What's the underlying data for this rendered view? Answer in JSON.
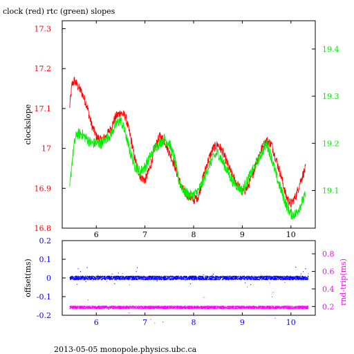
{
  "title": "clock (red) rtc (green) slopes",
  "footer": "2013-05-05  monopole.physics.ubc.ca",
  "colors": {
    "clock": "#ff0000",
    "rtc": "#00ee00",
    "offset": "#0000ff",
    "rndtrip": "#ff00ff",
    "axis": "#000000"
  },
  "chart_data": [
    {
      "type": "line",
      "ylabel": "clockslope",
      "y2label": "",
      "xlim": [
        5.3,
        10.5
      ],
      "ylim": [
        16.8,
        17.32
      ],
      "y2lim": [
        19.02,
        19.46
      ],
      "x_ticks": [
        6,
        7,
        8,
        9,
        10
      ],
      "y_ticks": [
        "16.8",
        "16.9",
        "17",
        "17.1",
        "17.2",
        "17.3"
      ],
      "y2_ticks": [
        "19.1",
        "19.2",
        "19.3",
        "19.4"
      ],
      "grid": false,
      "series": [
        {
          "name": "clock",
          "axis": "left",
          "x": [
            5.45,
            5.5,
            5.55,
            5.6,
            5.7,
            5.8,
            5.9,
            6.0,
            6.1,
            6.2,
            6.3,
            6.4,
            6.5,
            6.6,
            6.7,
            6.8,
            6.9,
            7.0,
            7.1,
            7.2,
            7.3,
            7.4,
            7.5,
            7.6,
            7.7,
            7.8,
            7.9,
            8.0,
            8.1,
            8.2,
            8.3,
            8.4,
            8.5,
            8.6,
            8.7,
            8.8,
            8.9,
            9.0,
            9.1,
            9.2,
            9.3,
            9.4,
            9.5,
            9.6,
            9.7,
            9.8,
            9.9,
            10.0,
            10.1,
            10.2,
            10.3
          ],
          "y": [
            17.1,
            17.16,
            17.17,
            17.16,
            17.14,
            17.11,
            17.06,
            17.03,
            17.02,
            17.03,
            17.05,
            17.08,
            17.09,
            17.08,
            17.03,
            16.97,
            16.93,
            16.92,
            16.95,
            17.0,
            17.03,
            17.02,
            16.99,
            16.96,
            16.92,
            16.89,
            16.88,
            16.87,
            16.88,
            16.93,
            16.97,
            17.0,
            17.01,
            16.99,
            16.96,
            16.93,
            16.91,
            16.89,
            16.9,
            16.93,
            16.97,
            17.0,
            17.02,
            17.01,
            16.97,
            16.93,
            16.88,
            16.86,
            16.88,
            16.92,
            16.95
          ]
        },
        {
          "name": "rtc",
          "axis": "right",
          "x": [
            5.45,
            5.5,
            5.55,
            5.6,
            5.7,
            5.8,
            5.9,
            6.0,
            6.1,
            6.2,
            6.3,
            6.4,
            6.5,
            6.6,
            6.7,
            6.8,
            6.9,
            7.0,
            7.1,
            7.2,
            7.3,
            7.4,
            7.5,
            7.6,
            7.7,
            7.8,
            7.9,
            8.0,
            8.1,
            8.2,
            8.3,
            8.4,
            8.5,
            8.6,
            8.7,
            8.8,
            8.9,
            9.0,
            9.1,
            9.2,
            9.3,
            9.4,
            9.5,
            9.6,
            9.7,
            9.8,
            9.9,
            10.0,
            10.1,
            10.2,
            10.3
          ],
          "y": [
            19.1,
            19.16,
            19.2,
            19.22,
            19.22,
            19.21,
            19.2,
            19.2,
            19.2,
            19.21,
            19.22,
            19.24,
            19.25,
            19.22,
            19.18,
            19.15,
            19.14,
            19.15,
            19.17,
            19.19,
            19.2,
            19.21,
            19.2,
            19.17,
            19.12,
            19.1,
            19.09,
            19.09,
            19.1,
            19.12,
            19.15,
            19.17,
            19.18,
            19.16,
            19.14,
            19.12,
            19.11,
            19.1,
            19.12,
            19.14,
            19.16,
            19.18,
            19.2,
            19.17,
            19.13,
            19.1,
            19.07,
            19.05,
            19.05,
            19.07,
            19.09
          ]
        }
      ]
    },
    {
      "type": "scatter",
      "ylabel": "offset(ms)",
      "y2label": "rnd-trip(ms)",
      "xlim": [
        5.3,
        10.5
      ],
      "ylim": [
        -0.2,
        0.2
      ],
      "y2lim": [
        0.1,
        0.95
      ],
      "x_ticks": [
        6,
        7,
        8,
        9,
        10
      ],
      "y_ticks": [
        "-0.2",
        "-0.1",
        "0",
        "0.1",
        "0.2"
      ],
      "y2_ticks": [
        "0.2",
        "0.4",
        "0.6",
        "0.8"
      ],
      "grid": false,
      "series": [
        {
          "name": "offset",
          "axis": "left",
          "center": 0.0,
          "spread": 0.02,
          "x_range": [
            5.45,
            10.35
          ]
        },
        {
          "name": "rnd-trip",
          "axis": "right",
          "center": 0.19,
          "spread": 0.03,
          "x_range": [
            5.45,
            10.35
          ]
        }
      ]
    }
  ]
}
